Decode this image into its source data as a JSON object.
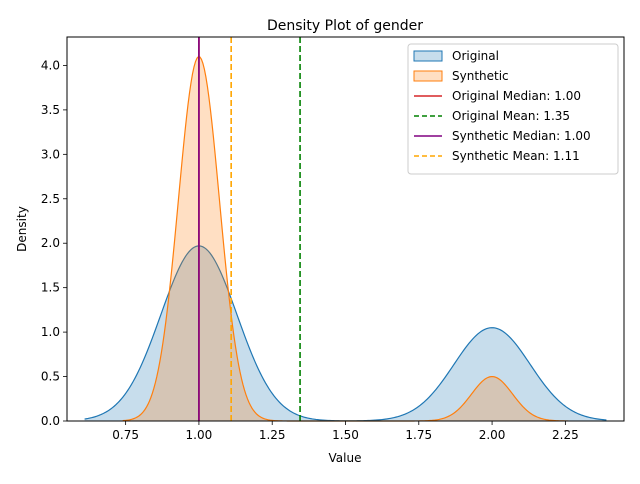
{
  "chart_data": {
    "type": "area",
    "title": "Density Plot of gender",
    "xlabel": "Value",
    "ylabel": "Density",
    "xlim": [
      0.55,
      2.45
    ],
    "ylim": [
      0,
      4.32
    ],
    "xticks": [
      0.75,
      1.0,
      1.25,
      1.5,
      1.75,
      2.0,
      2.25
    ],
    "xtick_labels": [
      "0.75",
      "1.00",
      "1.25",
      "1.50",
      "1.75",
      "2.00",
      "2.25"
    ],
    "yticks": [
      0.0,
      0.5,
      1.0,
      1.5,
      2.0,
      2.5,
      3.0,
      3.5,
      4.0
    ],
    "ytick_labels": [
      "0.0",
      "0.5",
      "1.0",
      "1.5",
      "2.0",
      "2.5",
      "3.0",
      "3.5",
      "4.0"
    ],
    "grid": false,
    "legend_position": "top-right",
    "series": [
      {
        "name": "Original",
        "color": "#1f77b4",
        "x_range": [
          0.61,
          2.39
        ],
        "components": [
          {
            "mu": 1.0,
            "sigma": 0.13,
            "peak": 1.97
          },
          {
            "mu": 2.0,
            "sigma": 0.13,
            "peak": 1.05
          }
        ]
      },
      {
        "name": "Synthetic",
        "color": "#ff7f0e",
        "x_range": [
          0.74,
          2.26
        ],
        "components": [
          {
            "mu": 1.0,
            "sigma": 0.07,
            "peak": 4.1
          },
          {
            "mu": 2.0,
            "sigma": 0.07,
            "peak": 0.5
          }
        ]
      }
    ],
    "reference_lines": [
      {
        "label": "Original Median: 1.00",
        "x": 1.0,
        "color": "#d62728",
        "style": "solid"
      },
      {
        "label": "Original Mean: 1.35",
        "x": 1.345,
        "color": "#008000",
        "style": "dashed"
      },
      {
        "label": "Synthetic Median: 1.00",
        "x": 1.0,
        "color": "#800080",
        "style": "solid"
      },
      {
        "label": "Synthetic Mean: 1.11",
        "x": 1.11,
        "color": "#ffa500",
        "style": "dashed"
      }
    ]
  }
}
